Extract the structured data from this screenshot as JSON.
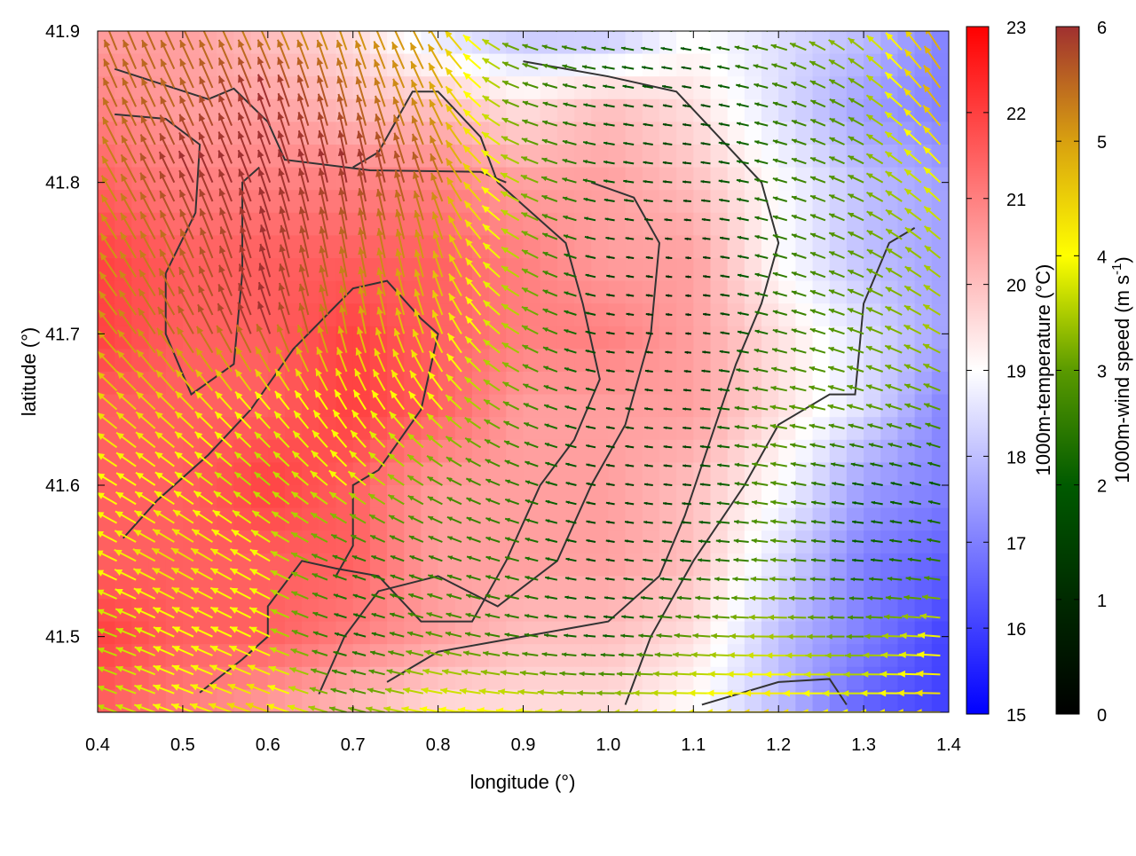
{
  "chart_data": {
    "type": "heatmap",
    "xlabel": "longitude (°)",
    "ylabel": "latitude (°)",
    "xlim": [
      0.4,
      1.4
    ],
    "ylim": [
      41.45,
      41.9
    ],
    "xticks": [
      "0.4",
      "0.5",
      "0.6",
      "0.7",
      "0.8",
      "0.9",
      "1.0",
      "1.1",
      "1.2",
      "1.3",
      "1.4"
    ],
    "yticks": [
      "41.5",
      "41.6",
      "41.7",
      "41.8",
      "41.9"
    ],
    "grid": false,
    "temperature": {
      "label": "1000m-temperature (°C)",
      "range": [
        15,
        23
      ],
      "ticks": [
        "15",
        "16",
        "17",
        "18",
        "19",
        "20",
        "21",
        "22",
        "23"
      ],
      "colors": {
        "low": "#0000ff",
        "mid": "#ffffff",
        "high": "#ff0000"
      },
      "lon": [
        0.4,
        0.5,
        0.6,
        0.7,
        0.8,
        0.9,
        1.0,
        1.1,
        1.2,
        1.3,
        1.4
      ],
      "lat": [
        41.9,
        41.85,
        41.8,
        41.75,
        41.7,
        41.65,
        41.6,
        41.55,
        41.5,
        41.45
      ],
      "values": [
        [
          20.5,
          20.5,
          20.0,
          19.5,
          18.5,
          18.0,
          18.0,
          19.0,
          18.5,
          18.0,
          17.0
        ],
        [
          21.0,
          20.5,
          20.5,
          20.0,
          20.0,
          19.5,
          20.0,
          19.5,
          18.5,
          17.5,
          17.0
        ],
        [
          21.5,
          21.0,
          21.0,
          21.0,
          21.0,
          20.5,
          20.5,
          20.0,
          19.0,
          18.0,
          17.5
        ],
        [
          22.0,
          21.5,
          21.5,
          21.5,
          21.5,
          21.0,
          20.5,
          20.5,
          19.0,
          18.0,
          17.5
        ],
        [
          22.0,
          21.5,
          21.5,
          22.0,
          21.5,
          21.0,
          21.0,
          20.5,
          19.5,
          18.5,
          17.5
        ],
        [
          21.5,
          21.5,
          21.5,
          22.0,
          21.5,
          20.5,
          20.5,
          20.5,
          19.5,
          18.5,
          17.0
        ],
        [
          21.5,
          21.5,
          22.0,
          21.5,
          20.5,
          20.5,
          20.5,
          20.0,
          19.0,
          17.5,
          17.0
        ],
        [
          21.5,
          21.5,
          21.5,
          21.5,
          20.5,
          20.5,
          20.5,
          20.0,
          18.5,
          17.0,
          16.5
        ],
        [
          22.0,
          21.5,
          21.5,
          21.0,
          20.5,
          20.0,
          20.0,
          19.5,
          18.0,
          17.0,
          16.0
        ],
        [
          21.5,
          21.0,
          20.5,
          20.0,
          19.5,
          19.5,
          19.5,
          19.0,
          18.0,
          16.5,
          16.0
        ]
      ]
    },
    "wind": {
      "label": "1000m-wind speed (m s-1)",
      "label_main": "1000m-wind speed (m s",
      "label_sup": "-1",
      "label_end": ")",
      "range": [
        0,
        6
      ],
      "ticks": [
        "0",
        "1",
        "2",
        "3",
        "4",
        "5",
        "6"
      ],
      "colors": [
        "#000000",
        "#002a00",
        "#005a00",
        "#5a9a00",
        "#ffff00",
        "#d8a010",
        "#a03030"
      ],
      "speed": [
        [
          5.5,
          5.5,
          5.0,
          5.0,
          5.0,
          3.0,
          2.5,
          2.0,
          3.0,
          3.5,
          5.0
        ],
        [
          5.5,
          5.5,
          6.0,
          5.5,
          5.0,
          3.0,
          2.0,
          1.5,
          2.5,
          3.0,
          5.0
        ],
        [
          5.0,
          6.0,
          6.0,
          6.0,
          5.5,
          3.5,
          2.0,
          1.5,
          2.5,
          3.0,
          4.0
        ],
        [
          5.0,
          5.5,
          6.0,
          5.5,
          5.0,
          3.5,
          1.5,
          1.0,
          2.5,
          3.0,
          3.5
        ],
        [
          5.0,
          5.5,
          6.0,
          5.0,
          4.5,
          3.5,
          1.5,
          1.0,
          2.5,
          3.0,
          3.5
        ],
        [
          4.5,
          4.5,
          4.0,
          4.0,
          4.0,
          3.0,
          1.5,
          1.5,
          3.0,
          3.0,
          3.0
        ],
        [
          4.0,
          4.0,
          3.5,
          4.0,
          3.0,
          2.5,
          1.5,
          1.5,
          3.0,
          2.0,
          2.0
        ],
        [
          4.0,
          4.5,
          4.0,
          2.5,
          2.5,
          2.5,
          1.5,
          2.0,
          3.0,
          2.0,
          2.5
        ],
        [
          3.5,
          4.0,
          4.0,
          2.0,
          3.0,
          2.5,
          2.0,
          3.0,
          3.5,
          3.0,
          4.0
        ],
        [
          3.5,
          4.0,
          4.5,
          3.0,
          4.0,
          4.0,
          3.5,
          4.0,
          4.5,
          4.0,
          4.5
        ]
      ],
      "direction_deg": [
        [
          110,
          115,
          115,
          110,
          120,
          160,
          170,
          170,
          165,
          140,
          120
        ],
        [
          115,
          115,
          110,
          105,
          115,
          160,
          170,
          170,
          165,
          150,
          125
        ],
        [
          120,
          115,
          110,
          100,
          110,
          155,
          170,
          175,
          165,
          155,
          135
        ],
        [
          125,
          115,
          105,
          100,
          105,
          150,
          170,
          175,
          165,
          155,
          140
        ],
        [
          130,
          120,
          110,
          100,
          110,
          150,
          170,
          175,
          165,
          160,
          150
        ],
        [
          140,
          135,
          130,
          120,
          130,
          155,
          170,
          175,
          170,
          165,
          160
        ],
        [
          150,
          145,
          140,
          140,
          150,
          160,
          170,
          175,
          170,
          170,
          165
        ],
        [
          155,
          150,
          150,
          160,
          160,
          165,
          170,
          175,
          175,
          175,
          170
        ],
        [
          160,
          155,
          155,
          165,
          165,
          170,
          175,
          175,
          180,
          180,
          175
        ],
        [
          160,
          160,
          160,
          165,
          170,
          175,
          180,
          180,
          180,
          180,
          180
        ]
      ]
    },
    "contours": [
      [
        [
          0.42,
          41.875
        ],
        [
          0.53,
          41.855
        ],
        [
          0.56,
          41.862
        ],
        [
          0.6,
          41.84
        ],
        [
          0.62,
          41.815
        ],
        [
          0.72,
          41.808
        ],
        [
          0.85,
          41.807
        ],
        [
          0.88,
          41.8
        ]
      ],
      [
        [
          0.42,
          41.845
        ],
        [
          0.48,
          41.842
        ],
        [
          0.52,
          41.825
        ],
        [
          0.515,
          41.78
        ],
        [
          0.48,
          41.74
        ],
        [
          0.48,
          41.7
        ],
        [
          0.51,
          41.66
        ],
        [
          0.56,
          41.68
        ],
        [
          0.57,
          41.74
        ],
        [
          0.57,
          41.8
        ],
        [
          0.59,
          41.81
        ]
      ],
      [
        [
          0.43,
          41.565
        ],
        [
          0.47,
          41.59
        ],
        [
          0.53,
          41.62
        ],
        [
          0.58,
          41.65
        ],
        [
          0.63,
          41.69
        ],
        [
          0.7,
          41.73
        ],
        [
          0.74,
          41.735
        ],
        [
          0.78,
          41.71
        ],
        [
          0.8,
          41.7
        ],
        [
          0.78,
          41.65
        ],
        [
          0.73,
          41.61
        ],
        [
          0.7,
          41.6
        ],
        [
          0.7,
          41.56
        ],
        [
          0.68,
          41.54
        ]
      ],
      [
        [
          0.52,
          41.463
        ],
        [
          0.57,
          41.485
        ],
        [
          0.6,
          41.5
        ],
        [
          0.6,
          41.52
        ],
        [
          0.64,
          41.55
        ],
        [
          0.68,
          41.545
        ],
        [
          0.73,
          41.54
        ],
        [
          0.78,
          41.51
        ],
        [
          0.84,
          41.51
        ],
        [
          0.88,
          41.55
        ],
        [
          0.92,
          41.6
        ],
        [
          0.96,
          41.63
        ],
        [
          0.99,
          41.67
        ],
        [
          0.97,
          41.72
        ],
        [
          0.95,
          41.76
        ],
        [
          0.87,
          41.8
        ],
        [
          0.85,
          41.83
        ],
        [
          0.8,
          41.86
        ],
        [
          0.77,
          41.86
        ],
        [
          0.73,
          41.82
        ],
        [
          0.7,
          41.81
        ]
      ],
      [
        [
          0.66,
          41.462
        ],
        [
          0.69,
          41.5
        ],
        [
          0.73,
          41.53
        ],
        [
          0.8,
          41.54
        ],
        [
          0.87,
          41.52
        ],
        [
          0.94,
          41.55
        ],
        [
          0.98,
          41.6
        ],
        [
          1.02,
          41.64
        ],
        [
          1.05,
          41.7
        ],
        [
          1.06,
          41.76
        ],
        [
          1.03,
          41.79
        ],
        [
          0.98,
          41.8
        ]
      ],
      [
        [
          1.02,
          41.455
        ],
        [
          1.05,
          41.5
        ],
        [
          1.1,
          41.55
        ],
        [
          1.16,
          41.6
        ],
        [
          1.2,
          41.64
        ],
        [
          1.26,
          41.66
        ],
        [
          1.29,
          41.66
        ],
        [
          1.3,
          41.72
        ],
        [
          1.33,
          41.76
        ],
        [
          1.36,
          41.77
        ]
      ],
      [
        [
          1.11,
          41.455
        ],
        [
          1.2,
          41.47
        ],
        [
          1.26,
          41.472
        ],
        [
          1.28,
          41.455
        ]
      ],
      [
        [
          0.9,
          41.88
        ],
        [
          1.0,
          41.87
        ],
        [
          1.08,
          41.86
        ],
        [
          1.13,
          41.83
        ],
        [
          1.18,
          41.8
        ],
        [
          1.2,
          41.76
        ],
        [
          1.18,
          41.72
        ],
        [
          1.15,
          41.68
        ],
        [
          1.12,
          41.63
        ],
        [
          1.09,
          41.58
        ],
        [
          1.06,
          41.54
        ],
        [
          1.0,
          41.51
        ],
        [
          0.9,
          41.5
        ],
        [
          0.8,
          41.49
        ],
        [
          0.74,
          41.47
        ]
      ]
    ]
  }
}
